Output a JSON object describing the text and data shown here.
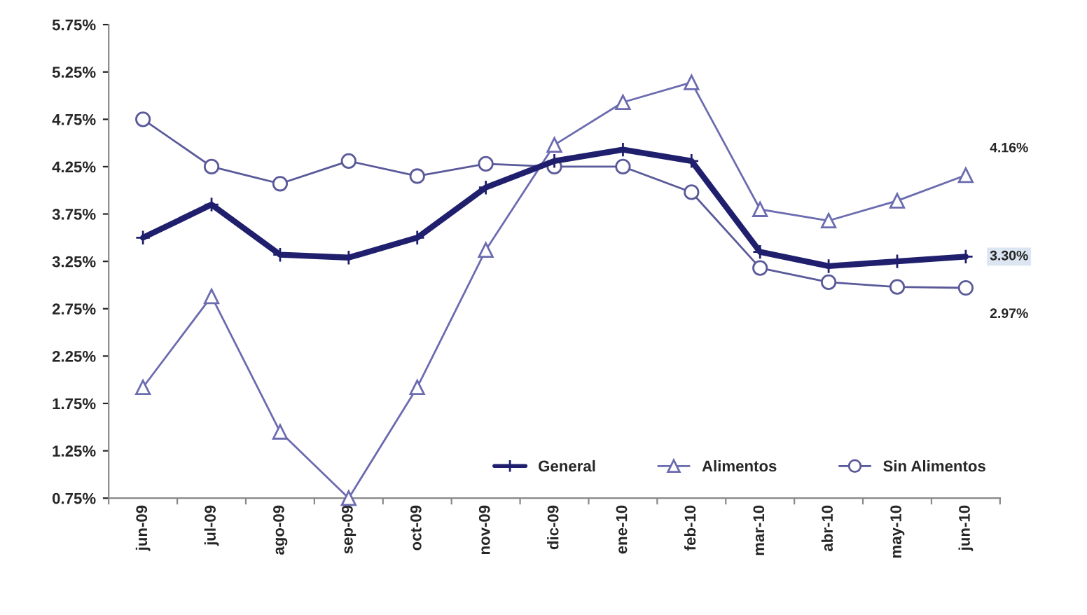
{
  "chart_data": {
    "type": "line",
    "categories": [
      "jun-09",
      "jul-09",
      "ago-09",
      "sep-09",
      "oct-09",
      "nov-09",
      "dic-09",
      "ene-10",
      "feb-10",
      "mar-10",
      "abr-10",
      "may-10",
      "jun-10"
    ],
    "series": [
      {
        "name": "General",
        "color": "#1f1f6e",
        "marker": "cross",
        "values": [
          3.5,
          3.85,
          3.32,
          3.29,
          3.5,
          4.03,
          4.31,
          4.43,
          4.31,
          3.35,
          3.2,
          3.25,
          3.3
        ],
        "value_labels": [
          null,
          null,
          null,
          null,
          null,
          null,
          null,
          null,
          null,
          null,
          null,
          null,
          "3.30%"
        ]
      },
      {
        "name": "Alimentos",
        "color": "#6b6bb0",
        "marker": "triangle",
        "values": [
          1.92,
          2.88,
          1.45,
          0.75,
          1.92,
          3.37,
          4.48,
          4.93,
          5.14,
          3.8,
          3.68,
          3.89,
          4.16
        ],
        "value_labels": [
          null,
          null,
          null,
          null,
          null,
          null,
          null,
          null,
          null,
          null,
          null,
          null,
          "4.16%"
        ]
      },
      {
        "name": "Sin Alimentos",
        "color": "#5a5a9a",
        "marker": "circle",
        "values": [
          4.75,
          4.25,
          4.07,
          4.31,
          4.15,
          4.28,
          4.25,
          4.25,
          3.98,
          3.18,
          3.03,
          2.98,
          2.97
        ],
        "value_labels": [
          null,
          null,
          null,
          null,
          null,
          null,
          null,
          null,
          null,
          null,
          null,
          null,
          "2.97%"
        ]
      }
    ],
    "ylim": [
      0.75,
      5.75
    ],
    "yticks": [
      {
        "value": 0.75,
        "label": "0.75%"
      },
      {
        "value": 1.25,
        "label": "1.25%"
      },
      {
        "value": 1.75,
        "label": "1.75%"
      },
      {
        "value": 2.25,
        "label": "2.25%"
      },
      {
        "value": 2.75,
        "label": "2.75%"
      },
      {
        "value": 3.25,
        "label": "3.25%"
      },
      {
        "value": 3.75,
        "label": "3.75%"
      },
      {
        "value": 4.25,
        "label": "4.25%"
      },
      {
        "value": 4.75,
        "label": "4.75%"
      },
      {
        "value": 5.25,
        "label": "5.25%"
      },
      {
        "value": 5.75,
        "label": "5.75%"
      }
    ],
    "grid": false,
    "legend": "bottom",
    "line_style": "solid"
  }
}
